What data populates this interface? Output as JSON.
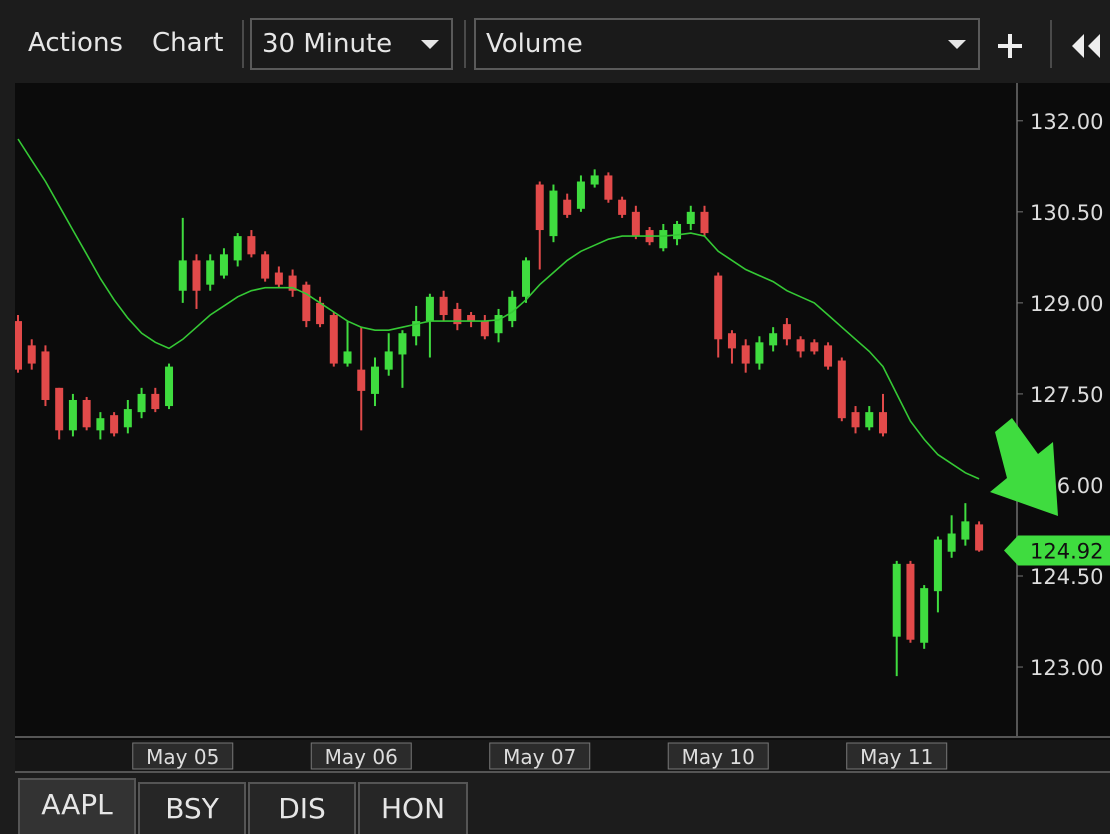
{
  "toolbar": {
    "menu": [
      "Actions",
      "Chart"
    ],
    "interval": "30 Minute",
    "study": "Volume"
  },
  "tabs": [
    "AAPL",
    "BSY",
    "DIS",
    "HON"
  ],
  "chart_data": {
    "type": "candlestick",
    "categories": [
      null,
      null,
      null,
      null,
      null,
      null,
      null,
      null,
      null,
      null,
      null,
      null,
      "May 05",
      null,
      null,
      null,
      null,
      null,
      null,
      null,
      null,
      null,
      null,
      null,
      null,
      "May 06",
      null,
      null,
      null,
      null,
      null,
      null,
      null,
      null,
      null,
      null,
      null,
      null,
      "May 07",
      null,
      null,
      null,
      null,
      null,
      null,
      null,
      null,
      null,
      null,
      null,
      null,
      "May 10",
      null,
      null,
      null,
      null,
      null,
      null,
      null,
      null,
      null,
      null,
      null,
      null,
      "May 11",
      null,
      null,
      null,
      null,
      null,
      null
    ],
    "open": [
      128.7,
      128.3,
      128.2,
      127.6,
      126.9,
      127.4,
      126.9,
      127.15,
      126.95,
      127.2,
      127.5,
      127.3,
      129.2,
      129.7,
      129.3,
      129.45,
      129.7,
      130.1,
      129.8,
      129.5,
      129.45,
      129.3,
      129.0,
      128.8,
      128.0,
      127.9,
      127.5,
      127.9,
      128.15,
      128.45,
      128.7,
      129.1,
      128.9,
      128.8,
      128.7,
      128.5,
      128.7,
      129.1,
      130.95,
      130.1,
      130.7,
      130.55,
      130.95,
      131.1,
      130.7,
      130.5,
      130.2,
      129.9,
      130.05,
      130.3,
      130.5,
      129.45,
      128.5,
      128.3,
      128.0,
      128.3,
      128.65,
      128.4,
      128.35,
      128.3,
      128.05,
      127.2,
      126.95,
      127.2,
      123.5,
      124.7,
      123.4,
      124.25,
      124.9,
      125.1,
      125.35
    ],
    "high": [
      128.8,
      128.4,
      128.3,
      127.6,
      127.5,
      127.45,
      127.2,
      127.2,
      127.4,
      127.6,
      127.6,
      128.0,
      130.4,
      129.8,
      129.8,
      129.9,
      130.15,
      130.2,
      129.85,
      129.6,
      129.55,
      129.35,
      129.1,
      128.85,
      128.7,
      128.6,
      128.1,
      128.5,
      128.55,
      128.95,
      129.15,
      129.2,
      129.0,
      128.85,
      128.8,
      128.9,
      129.2,
      129.75,
      131.0,
      130.95,
      130.8,
      131.1,
      131.2,
      131.15,
      130.75,
      130.6,
      130.25,
      130.3,
      130.35,
      130.6,
      130.6,
      129.5,
      128.55,
      128.4,
      128.45,
      128.6,
      128.75,
      128.45,
      128.4,
      128.35,
      128.1,
      127.3,
      127.3,
      127.5,
      124.75,
      124.75,
      124.35,
      125.15,
      125.5,
      125.7,
      125.4
    ],
    "low": [
      127.85,
      127.9,
      127.3,
      126.75,
      126.8,
      126.9,
      126.75,
      126.8,
      126.85,
      127.1,
      127.2,
      127.25,
      129.0,
      128.9,
      129.2,
      129.4,
      129.6,
      129.75,
      129.35,
      129.25,
      129.1,
      128.6,
      128.6,
      127.95,
      127.95,
      126.9,
      127.3,
      127.8,
      127.6,
      128.3,
      128.1,
      128.7,
      128.55,
      128.6,
      128.4,
      128.35,
      128.6,
      129.0,
      129.55,
      130.0,
      130.4,
      130.5,
      130.9,
      130.65,
      130.4,
      130.05,
      129.95,
      129.85,
      129.95,
      130.2,
      130.1,
      128.1,
      128.0,
      127.85,
      127.9,
      128.2,
      128.3,
      128.1,
      128.15,
      127.9,
      127.05,
      126.85,
      126.9,
      126.8,
      122.85,
      123.4,
      123.3,
      123.9,
      124.8,
      125.0,
      124.9
    ],
    "close": [
      127.9,
      128.0,
      127.4,
      126.9,
      127.4,
      126.95,
      127.1,
      126.85,
      127.25,
      127.5,
      127.25,
      127.95,
      129.7,
      129.2,
      129.7,
      129.8,
      130.1,
      129.8,
      129.4,
      129.3,
      129.2,
      128.7,
      128.65,
      128.0,
      128.2,
      127.55,
      127.95,
      128.2,
      128.5,
      128.7,
      129.1,
      128.8,
      128.65,
      128.7,
      128.45,
      128.8,
      129.1,
      129.7,
      130.2,
      130.85,
      130.45,
      131.0,
      131.1,
      130.7,
      130.45,
      130.1,
      130.0,
      130.2,
      130.3,
      130.5,
      130.15,
      128.4,
      128.25,
      128.0,
      128.35,
      128.5,
      128.4,
      128.2,
      128.2,
      127.95,
      127.1,
      126.95,
      127.2,
      126.85,
      124.7,
      123.45,
      124.3,
      125.1,
      125.2,
      125.4,
      124.92
    ],
    "up_color": "#3fdc3f",
    "down_color": "#e24a4a",
    "lines": [
      {
        "color": "#35c935",
        "values": [
          131.7,
          131.35,
          131.0,
          130.6,
          130.2,
          129.8,
          129.4,
          129.05,
          128.75,
          128.5,
          128.35,
          128.25,
          128.4,
          128.6,
          128.8,
          128.95,
          129.1,
          129.2,
          129.25,
          129.25,
          129.25,
          129.15,
          129.0,
          128.85,
          128.7,
          128.6,
          128.55,
          128.55,
          128.6,
          128.65,
          128.7,
          128.7,
          128.7,
          128.7,
          128.7,
          128.72,
          128.85,
          129.05,
          129.3,
          129.5,
          129.7,
          129.85,
          129.95,
          130.05,
          130.1,
          130.1,
          130.1,
          130.1,
          130.12,
          130.15,
          130.1,
          129.85,
          129.7,
          129.55,
          129.45,
          129.35,
          129.2,
          129.1,
          129.0,
          128.8,
          128.6,
          128.4,
          128.2,
          127.95,
          127.5,
          127.05,
          126.75,
          126.5,
          126.35,
          126.2,
          126.1
        ]
      }
    ],
    "last_price": 124.92,
    "ylim": [
      121.88,
      132.59
    ],
    "yticks": [
      {
        "value": 123,
        "label": "123.00"
      },
      {
        "value": 124.5,
        "label": "124.50"
      },
      {
        "value": 126,
        "label": "126.00"
      },
      {
        "value": 127.5,
        "label": "127.50"
      },
      {
        "value": 129,
        "label": "129.00"
      },
      {
        "value": 130.5,
        "label": "130.50"
      },
      {
        "value": 132,
        "label": "132.00"
      }
    ]
  }
}
